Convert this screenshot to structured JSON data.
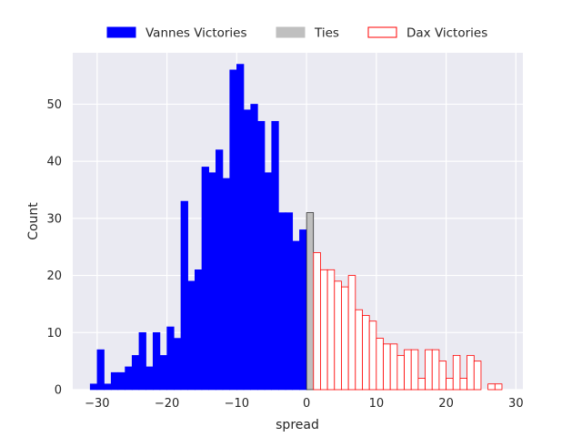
{
  "chart_data": {
    "type": "bar",
    "xlabel": "spread",
    "ylabel": "Count",
    "xlim": [
      -33.5,
      31
    ],
    "ylim": [
      0,
      59
    ],
    "x_ticks": [
      -30,
      -20,
      -10,
      0,
      10,
      20,
      30
    ],
    "x_tick_labels": [
      "−30",
      "−20",
      "−10",
      "0",
      "10",
      "20",
      "30"
    ],
    "y_ticks": [
      0,
      10,
      20,
      30,
      40,
      50
    ],
    "y_tick_labels": [
      "0",
      "10",
      "20",
      "30",
      "40",
      "50"
    ],
    "grid": true,
    "legend_position": "top",
    "series": [
      {
        "name": "Vannes Victories",
        "color": "#0000ff",
        "edge_color": "#0000ff",
        "fill": true,
        "bins": [
          -31,
          -30,
          -29,
          -28,
          -27,
          -26,
          -25,
          -24,
          -23,
          -22,
          -21,
          -20,
          -19,
          -18,
          -17,
          -16,
          -15,
          -14,
          -13,
          -12,
          -11,
          -10,
          -9,
          -8,
          -7,
          -6,
          -5,
          -4,
          -3,
          -2,
          -1
        ],
        "values": [
          1,
          7,
          1,
          3,
          3,
          4,
          6,
          10,
          4,
          10,
          6,
          11,
          9,
          33,
          19,
          21,
          39,
          38,
          42,
          37,
          56,
          57,
          49,
          50,
          47,
          38,
          47,
          31,
          31,
          26,
          28
        ]
      },
      {
        "name": "Ties",
        "color": "#bfbfbf",
        "edge_color": "#000000",
        "fill": true,
        "bins": [
          0
        ],
        "values": [
          31
        ]
      },
      {
        "name": "Dax Victories",
        "color": "#ffffff",
        "edge_color": "#ff0000",
        "fill": false,
        "bins": [
          1,
          2,
          3,
          4,
          5,
          6,
          7,
          8,
          9,
          10,
          11,
          12,
          13,
          14,
          15,
          16,
          17,
          18,
          19,
          20,
          21,
          22,
          23,
          24,
          25,
          26,
          27,
          28
        ],
        "values": [
          24,
          21,
          21,
          19,
          18,
          20,
          14,
          13,
          12,
          9,
          8,
          8,
          6,
          7,
          7,
          2,
          7,
          7,
          5,
          2,
          6,
          2,
          6,
          5,
          0,
          1,
          1,
          0
        ]
      }
    ],
    "legend": [
      {
        "label": "Vannes Victories",
        "color": "#0000ff",
        "edge_color": "#0000ff"
      },
      {
        "label": "Ties",
        "color": "#bfbfbf",
        "edge_color": "#bfbfbf"
      },
      {
        "label": "Dax Victories",
        "color": "#ffffff",
        "edge_color": "#ff0000"
      }
    ]
  }
}
